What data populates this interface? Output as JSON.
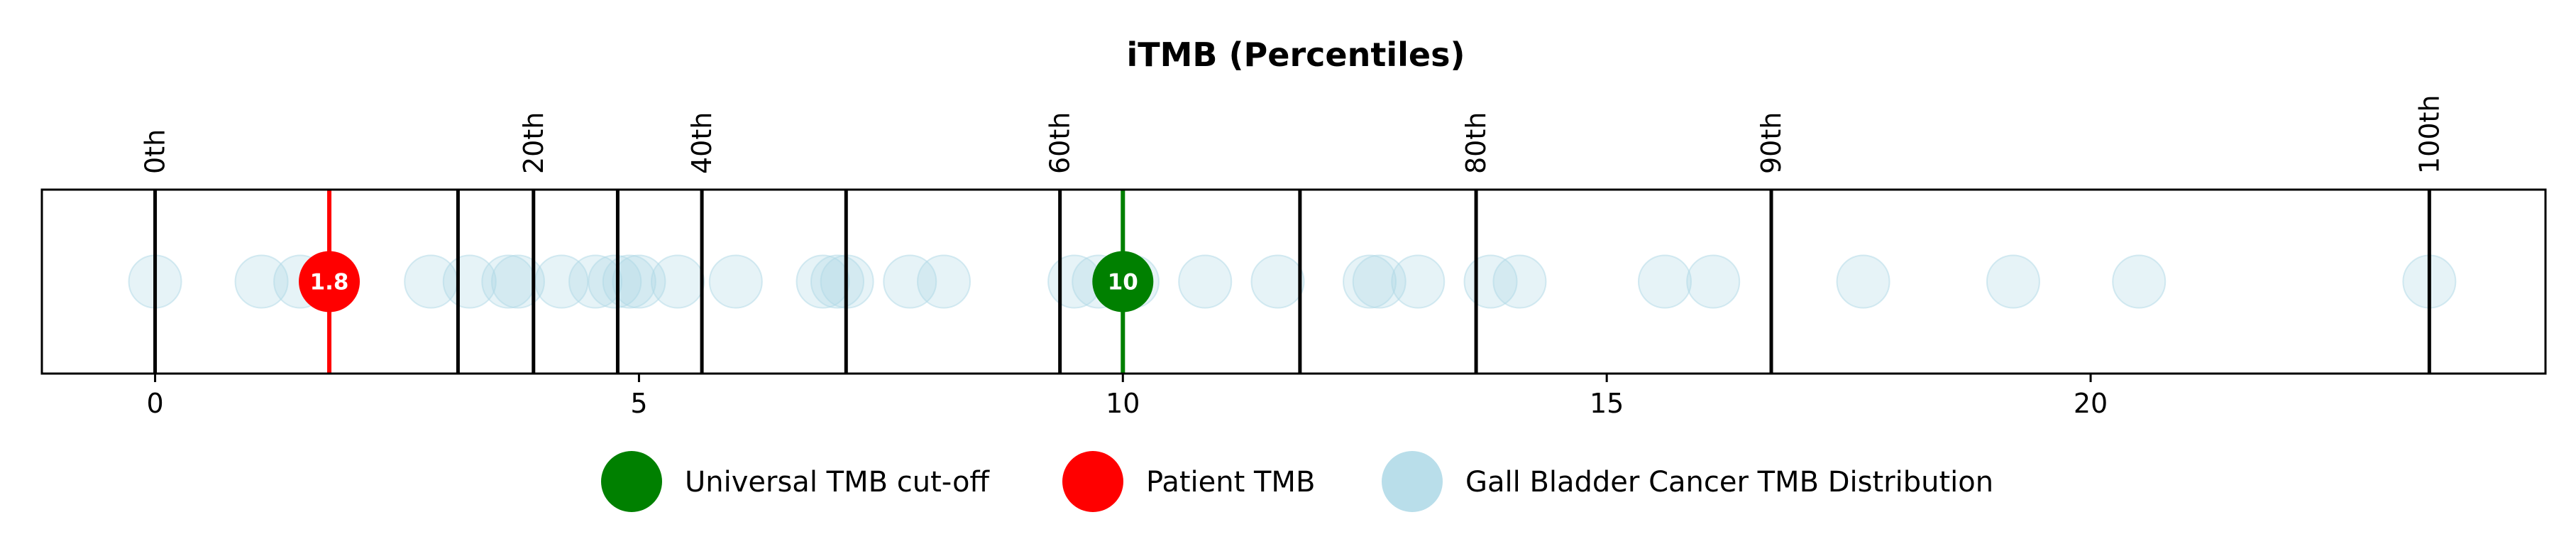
{
  "chart_data": {
    "type": "scatter",
    "title": "iTMB (Percentiles)",
    "xlabel": "",
    "ylabel": "",
    "xlim": [
      -1.17,
      24.7
    ],
    "x_ticks": [
      0,
      5,
      10,
      15,
      20
    ],
    "grid": false,
    "legend_position": "bottom-center",
    "percentile_markers": [
      {
        "label": "0th",
        "x": 0
      },
      {
        "label": "",
        "x": 3.13
      },
      {
        "label": "20th",
        "x": 3.91
      },
      {
        "label": "",
        "x": 4.78
      },
      {
        "label": "40th",
        "x": 5.65
      },
      {
        "label": "",
        "x": 7.14
      },
      {
        "label": "60th",
        "x": 9.35
      },
      {
        "label": "",
        "x": 11.83
      },
      {
        "label": "80th",
        "x": 13.65
      },
      {
        "label": "90th",
        "x": 16.7
      },
      {
        "label": "100th",
        "x": 23.5
      }
    ],
    "series": [
      {
        "name": "Universal TMB cut-off",
        "color": "#008000",
        "values": [
          10
        ],
        "value_label": "10"
      },
      {
        "name": "Patient TMB",
        "color": "#ff0000",
        "values": [
          1.8
        ],
        "value_label": "1.8"
      },
      {
        "name": "Gall Bladder Cancer TMB Distribution",
        "color": "#add8e6",
        "values": [
          0,
          1.1,
          1.5,
          2.85,
          3.25,
          3.65,
          3.75,
          4.2,
          4.55,
          4.75,
          4.9,
          5.0,
          5.4,
          6.0,
          6.9,
          7.05,
          7.15,
          7.8,
          8.15,
          9.5,
          9.75,
          10.1,
          10.85,
          11.6,
          12.55,
          12.65,
          13.05,
          13.8,
          14.1,
          15.6,
          16.1,
          17.65,
          19.2,
          20.5,
          23.5
        ]
      }
    ]
  }
}
